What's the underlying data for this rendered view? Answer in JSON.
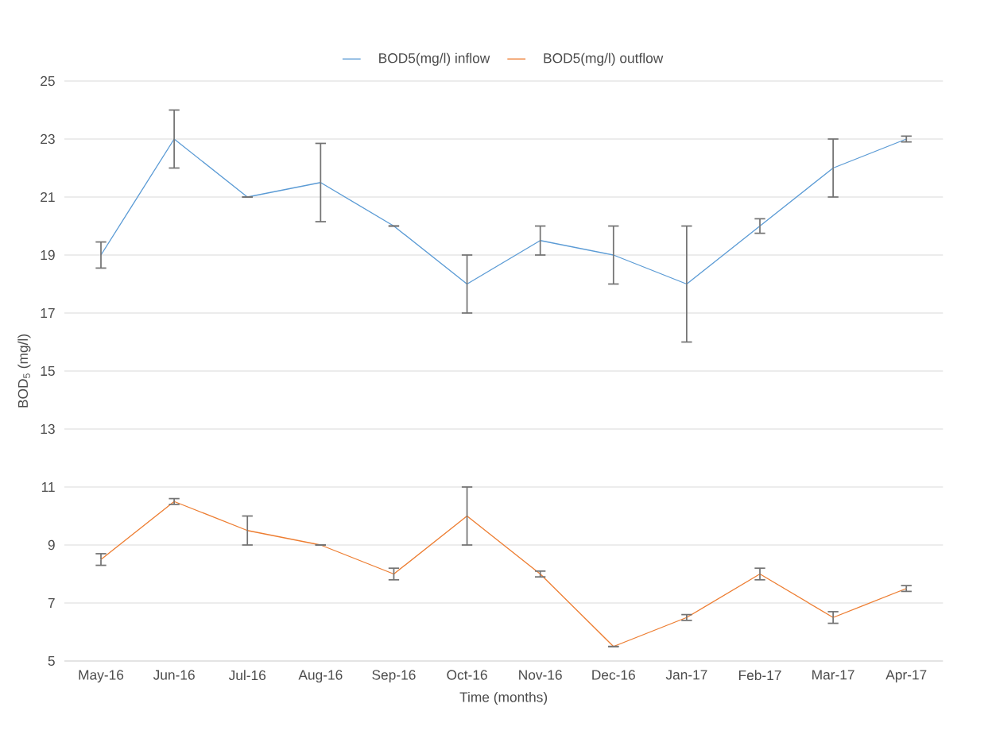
{
  "chart_data": {
    "type": "line",
    "xlabel": "Time (months)",
    "ylabel": "BOD$_{5}$ (mg/l)",
    "categories": [
      "May-16",
      "Jun-16",
      "Jul-16",
      "Aug-16",
      "Sep-16",
      "Oct-16",
      "Nov-16",
      "Dec-16",
      "Jan-17",
      "Feb-17",
      "Mar-17",
      "Apr-17"
    ],
    "series": [
      {
        "name": "BOD5(mg/l) inflow",
        "color": "#5b9bd5",
        "values": [
          19,
          23,
          21,
          21.5,
          20,
          18,
          19.5,
          19,
          18,
          20,
          22,
          23
        ],
        "errors": [
          0.45,
          1,
          0,
          1.35,
          0,
          1,
          0.5,
          1,
          2,
          0.25,
          1,
          0.1
        ]
      },
      {
        "name": "BOD5(mg/l) outflow",
        "color": "#ed7d31",
        "values": [
          8.5,
          10.5,
          9.5,
          9,
          8,
          10,
          8,
          5.5,
          6.5,
          8,
          6.5,
          7.5
        ],
        "errors": [
          0.2,
          0.1,
          0.5,
          0,
          0.2,
          1,
          0.1,
          0,
          0.1,
          0.2,
          0.2,
          0.1
        ]
      }
    ],
    "ylim": [
      5,
      25
    ],
    "yticks": [
      5,
      7,
      9,
      11,
      13,
      15,
      17,
      19,
      21,
      23,
      25
    ],
    "grid": "y",
    "legend": "top",
    "marker": "none",
    "line_style": "solid"
  }
}
